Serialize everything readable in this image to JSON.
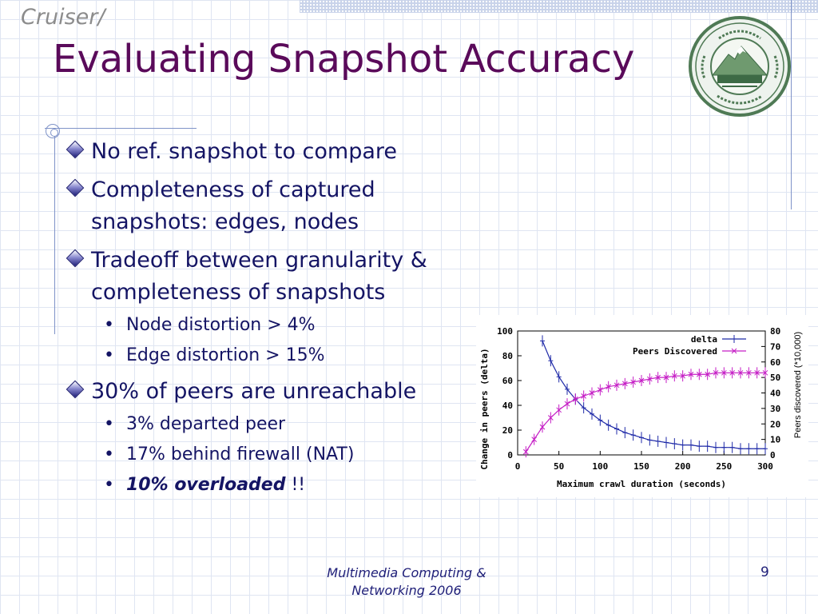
{
  "header": {
    "section": "Cruiser/",
    "title": "Evaluating Snapshot Accuracy"
  },
  "seal": {
    "text_top": "UNIVERSITAS OREGONENSIS",
    "text_bottom": "MENS AGITAT MOLEM",
    "year": "MDCCCLXXII"
  },
  "bullets": [
    {
      "text": "No ref. snapshot to compare",
      "sub": []
    },
    {
      "text": "Completeness of captured snapshots: edges, nodes",
      "sub": []
    },
    {
      "text": "Tradeoff between granularity & completeness of snapshots",
      "sub": [
        {
          "text": "Node distortion > 4%"
        },
        {
          "text": "Edge distortion > 15%"
        }
      ]
    },
    {
      "text": "30% of peers are unreachable",
      "sub": [
        {
          "text": "3% departed peer"
        },
        {
          "text": "17% behind firewall (NAT)"
        },
        {
          "emph": "10% overloaded",
          "after": " !!"
        }
      ]
    }
  ],
  "chart_data": {
    "type": "line",
    "x": [
      10,
      20,
      30,
      40,
      50,
      60,
      70,
      80,
      90,
      100,
      110,
      120,
      130,
      140,
      150,
      160,
      170,
      180,
      190,
      200,
      210,
      220,
      230,
      240,
      250,
      260,
      270,
      280,
      290,
      300
    ],
    "series": [
      {
        "name": "delta",
        "axis": "left",
        "color": "#1f2aa8",
        "values": [
          null,
          null,
          92,
          76,
          63,
          53,
          45,
          38,
          33,
          28,
          24,
          21,
          18,
          16,
          14,
          12,
          11,
          10,
          9,
          8,
          8,
          7,
          7,
          6,
          6,
          6,
          5,
          5,
          5,
          5
        ]
      },
      {
        "name": "Peers Discovered",
        "axis": "right",
        "color": "#c51dc5",
        "values": [
          2,
          10,
          18,
          24,
          29,
          33,
          36,
          38,
          40,
          42,
          44,
          45,
          46,
          47,
          48,
          49,
          50,
          50,
          51,
          51,
          52,
          52,
          52,
          53,
          53,
          53,
          53,
          53,
          53,
          53
        ]
      }
    ],
    "xlabel": "Maximum crawl duration (seconds)",
    "ylabel": "Change in peers (delta)",
    "y2label": "Peers discovered (*10,000)",
    "xlim": [
      0,
      300
    ],
    "ylim": [
      0,
      100
    ],
    "y2lim": [
      0,
      80
    ],
    "xticks": [
      "0",
      "50",
      "100",
      "150",
      "200",
      "250",
      "300"
    ],
    "yticks": [
      "0",
      "20",
      "40",
      "60",
      "80",
      "100"
    ],
    "y2ticks": [
      "0",
      "10",
      "20",
      "30",
      "40",
      "50",
      "60",
      "70",
      "80"
    ],
    "legend_position": "top-right",
    "grid": false
  },
  "footer": {
    "line1": "Multimedia Computing &",
    "line2": "Networking 2006",
    "page": "9"
  }
}
